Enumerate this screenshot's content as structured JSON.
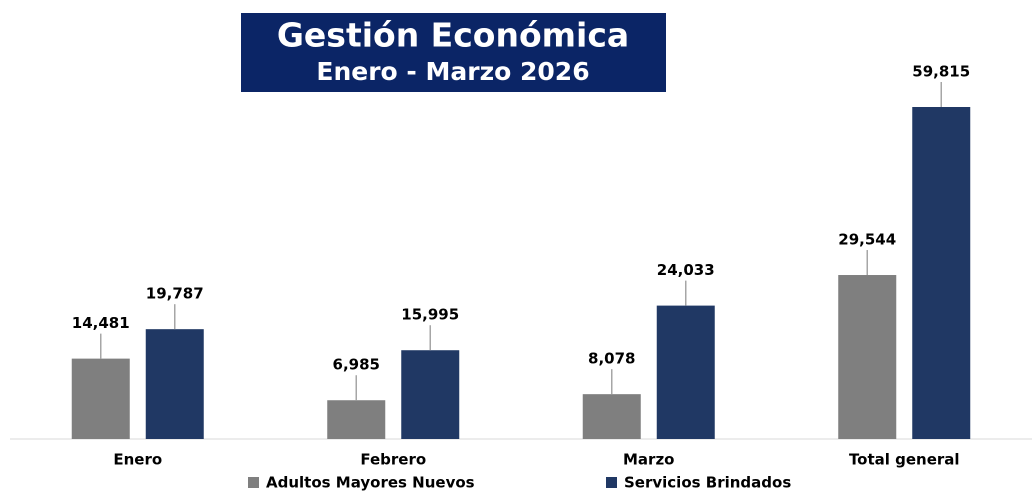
{
  "chart_data": {
    "type": "bar",
    "title": "Gestión Económica",
    "subtitle": "Enero - Marzo 2026",
    "categories": [
      "Enero",
      "Febrero",
      "Marzo",
      "Total general"
    ],
    "series": [
      {
        "name": "Adultos Mayores Nuevos",
        "color": "#7f7f7f",
        "values": [
          14481,
          6985,
          8078,
          29544
        ],
        "value_labels": [
          "14,481",
          "6,985",
          "8,078",
          "29,544"
        ]
      },
      {
        "name": "Servicios Brindados",
        "color": "#203864",
        "values": [
          19787,
          15995,
          24033,
          59815
        ],
        "value_labels": [
          "19,787",
          "15,995",
          "24,033",
          "59,815"
        ]
      }
    ],
    "legend": "bottom"
  }
}
